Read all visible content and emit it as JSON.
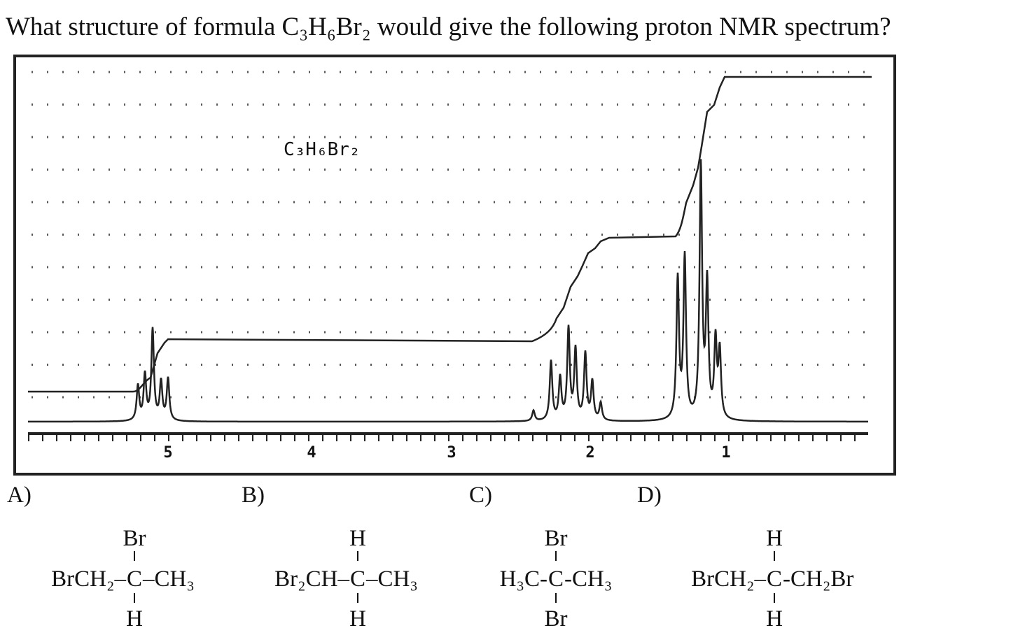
{
  "question": "What structure of formula C₃H₆Br₂ would give the following proton NMR spectrum?",
  "spectrum": {
    "label": "C₃H₆Br₂",
    "axis_labels": [
      "5",
      "4",
      "3",
      "2",
      "1"
    ]
  },
  "options": [
    {
      "label": "A)",
      "top": "Br",
      "left": "BrCH₂–",
      "center": "C",
      "right": "–CH₃",
      "bottom": "H"
    },
    {
      "label": "B)",
      "top": "H",
      "left": "Br₂CH–",
      "center": "C",
      "right": "–CH₃",
      "bottom": "H"
    },
    {
      "label": "C)",
      "top": "Br",
      "left": "H₃C-",
      "center": "C",
      "right": "-CH₃",
      "bottom": "Br"
    },
    {
      "label": "D)",
      "top": "H",
      "left": "BrCH₂–",
      "center": "C",
      "right": "-CH₂Br",
      "bottom": "H"
    }
  ]
}
